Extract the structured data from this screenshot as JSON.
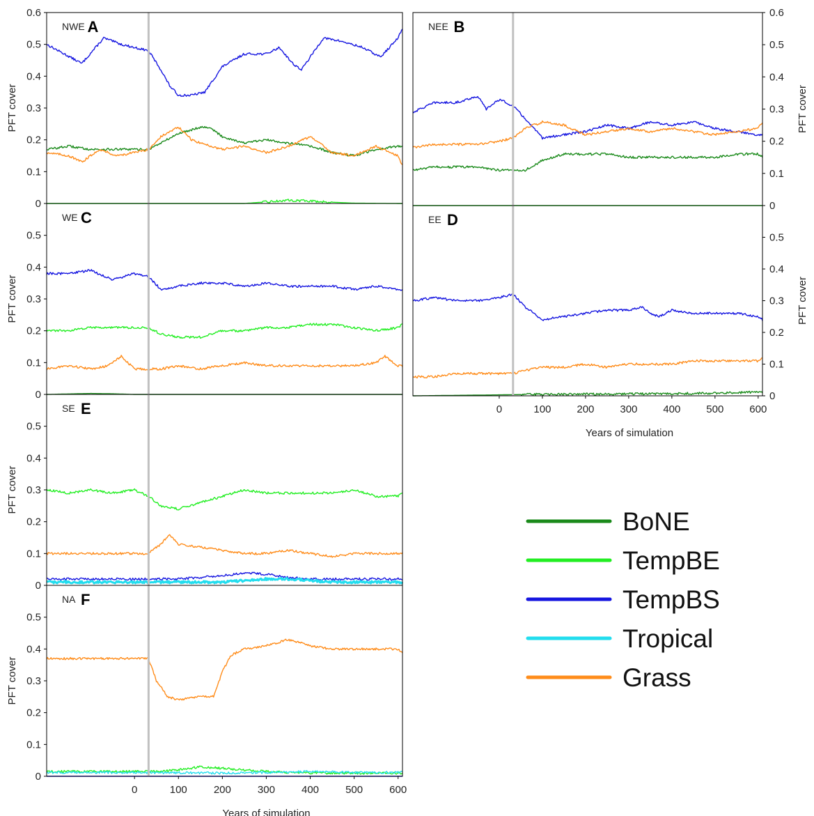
{
  "figure": {
    "xlabel": "Years of simulation",
    "ylabel": "PFT cover",
    "vline_year": 32
  },
  "colors": {
    "BoNE": "#1a8a1a",
    "TempBE": "#22ee22",
    "TempBS": "#1515e0",
    "Tropical": "#22ddee",
    "Grass": "#ff8c1a",
    "divider": "#c0c0c0"
  },
  "legend": [
    {
      "key": "BoNE",
      "label": " BoNE"
    },
    {
      "key": "TempBE",
      "label": "TempBE"
    },
    {
      "key": "TempBS",
      "label": "TempBS"
    },
    {
      "key": "Tropical",
      "label": "Tropical"
    },
    {
      "key": "Grass",
      "label": "Grass"
    }
  ],
  "chart_data": [
    {
      "type": "line",
      "letter": "A",
      "region": "NWE",
      "xlim": [
        -200,
        610
      ],
      "ylim": [
        0,
        0.6
      ],
      "yticks": [
        "0",
        "0.1",
        "0.2",
        "0.3",
        "0.4",
        "0.5",
        "0.6"
      ],
      "xticks": [],
      "show_xlabel": false,
      "show_ylabel": true,
      "right_axis": false,
      "series": [
        {
          "key": "TempBS",
          "x": [
            -200,
            -120,
            -70,
            -30,
            0,
            32,
            60,
            80,
            100,
            130,
            160,
            200,
            250,
            300,
            330,
            360,
            380,
            430,
            470,
            520,
            560,
            600,
            610
          ],
          "y": [
            0.5,
            0.44,
            0.52,
            0.5,
            0.49,
            0.48,
            0.42,
            0.37,
            0.34,
            0.34,
            0.35,
            0.43,
            0.47,
            0.47,
            0.49,
            0.44,
            0.42,
            0.52,
            0.51,
            0.49,
            0.46,
            0.52,
            0.55
          ]
        },
        {
          "key": "BoNE",
          "x": [
            -200,
            -150,
            -100,
            -50,
            0,
            32,
            60,
            100,
            150,
            170,
            200,
            250,
            300,
            350,
            400,
            450,
            500,
            550,
            600,
            610
          ],
          "y": [
            0.17,
            0.18,
            0.17,
            0.17,
            0.17,
            0.17,
            0.19,
            0.22,
            0.24,
            0.24,
            0.21,
            0.19,
            0.2,
            0.19,
            0.18,
            0.16,
            0.15,
            0.17,
            0.18,
            0.18
          ]
        },
        {
          "key": "Grass",
          "x": [
            -200,
            -150,
            -120,
            -80,
            -40,
            0,
            32,
            60,
            100,
            130,
            150,
            200,
            250,
            300,
            350,
            400,
            450,
            500,
            550,
            600,
            610
          ],
          "y": [
            0.16,
            0.15,
            0.13,
            0.17,
            0.15,
            0.16,
            0.17,
            0.21,
            0.24,
            0.2,
            0.19,
            0.17,
            0.18,
            0.16,
            0.18,
            0.21,
            0.16,
            0.15,
            0.18,
            0.15,
            0.12
          ]
        },
        {
          "key": "TempBE",
          "x": [
            -200,
            250,
            300,
            350,
            400,
            450,
            500,
            610
          ],
          "y": [
            0,
            0,
            0.005,
            0.01,
            0.008,
            0.004,
            0.001,
            0
          ]
        }
      ]
    },
    {
      "type": "line",
      "letter": "B",
      "region": "NEE",
      "xlim": [
        -200,
        610
      ],
      "ylim": [
        0,
        0.6
      ],
      "yticks": [
        "0",
        "0.1",
        "0.2",
        "0.3",
        "0.4",
        "0.5",
        "0.6"
      ],
      "xticks": [],
      "show_xlabel": false,
      "show_ylabel": true,
      "right_axis": true,
      "series": [
        {
          "key": "TempBS",
          "x": [
            -200,
            -150,
            -100,
            -50,
            -30,
            0,
            32,
            60,
            100,
            150,
            200,
            250,
            300,
            350,
            400,
            450,
            500,
            550,
            600,
            610
          ],
          "y": [
            0.29,
            0.32,
            0.32,
            0.34,
            0.3,
            0.33,
            0.31,
            0.27,
            0.21,
            0.22,
            0.23,
            0.25,
            0.24,
            0.26,
            0.25,
            0.26,
            0.24,
            0.23,
            0.22,
            0.22
          ]
        },
        {
          "key": "Grass",
          "x": [
            -200,
            -150,
            -100,
            -50,
            0,
            32,
            60,
            100,
            150,
            200,
            250,
            300,
            350,
            400,
            450,
            500,
            550,
            600,
            610
          ],
          "y": [
            0.18,
            0.19,
            0.19,
            0.19,
            0.2,
            0.21,
            0.24,
            0.26,
            0.25,
            0.22,
            0.23,
            0.24,
            0.23,
            0.24,
            0.23,
            0.22,
            0.23,
            0.24,
            0.26
          ]
        },
        {
          "key": "BoNE",
          "x": [
            -200,
            -150,
            -100,
            -50,
            0,
            32,
            60,
            100,
            150,
            200,
            250,
            300,
            350,
            400,
            450,
            500,
            550,
            600,
            610
          ],
          "y": [
            0.11,
            0.12,
            0.12,
            0.12,
            0.11,
            0.11,
            0.11,
            0.14,
            0.16,
            0.16,
            0.16,
            0.15,
            0.15,
            0.15,
            0.15,
            0.15,
            0.16,
            0.16,
            0.15
          ]
        },
        {
          "key": "TempBE",
          "x": [
            -200,
            610
          ],
          "y": [
            0,
            0
          ]
        }
      ]
    },
    {
      "type": "line",
      "letter": "C",
      "region": "WE",
      "xlim": [
        -200,
        610
      ],
      "ylim": [
        0,
        0.6
      ],
      "yticks": [
        "0",
        "0.1",
        "0.2",
        "0.3",
        "0.4",
        "0.5"
      ],
      "xticks": [],
      "show_xlabel": false,
      "show_ylabel": true,
      "right_axis": false,
      "series": [
        {
          "key": "TempBS",
          "x": [
            -200,
            -150,
            -100,
            -50,
            0,
            32,
            60,
            100,
            150,
            200,
            250,
            300,
            350,
            400,
            450,
            500,
            550,
            600,
            610
          ],
          "y": [
            0.38,
            0.38,
            0.39,
            0.36,
            0.38,
            0.37,
            0.33,
            0.34,
            0.35,
            0.35,
            0.34,
            0.35,
            0.34,
            0.34,
            0.34,
            0.33,
            0.34,
            0.33,
            0.33
          ]
        },
        {
          "key": "TempBE",
          "x": [
            -200,
            -150,
            -100,
            -50,
            0,
            32,
            60,
            100,
            150,
            200,
            250,
            300,
            350,
            400,
            450,
            500,
            550,
            600,
            610
          ],
          "y": [
            0.2,
            0.2,
            0.21,
            0.21,
            0.21,
            0.21,
            0.19,
            0.18,
            0.18,
            0.2,
            0.2,
            0.21,
            0.21,
            0.22,
            0.22,
            0.21,
            0.2,
            0.21,
            0.22
          ]
        },
        {
          "key": "Grass",
          "x": [
            -200,
            -150,
            -100,
            -60,
            -30,
            0,
            32,
            60,
            100,
            150,
            200,
            250,
            300,
            350,
            400,
            450,
            500,
            550,
            570,
            600,
            610
          ],
          "y": [
            0.08,
            0.09,
            0.08,
            0.09,
            0.12,
            0.08,
            0.08,
            0.08,
            0.09,
            0.08,
            0.09,
            0.1,
            0.09,
            0.09,
            0.09,
            0.09,
            0.09,
            0.1,
            0.12,
            0.09,
            0.09
          ]
        },
        {
          "key": "BoNE",
          "x": [
            -200,
            -100,
            -50,
            0,
            610
          ],
          "y": [
            0,
            0.003,
            0.002,
            0,
            0
          ]
        }
      ]
    },
    {
      "type": "line",
      "letter": "D",
      "region": "EE",
      "xlim": [
        -200,
        610
      ],
      "ylim": [
        0,
        0.6
      ],
      "yticks": [
        "0",
        "0.1",
        "0.2",
        "0.3",
        "0.4",
        "0.5"
      ],
      "xticks": [
        "0",
        "100",
        "200",
        "300",
        "400",
        "500",
        "600"
      ],
      "xtick_values": [
        0,
        100,
        200,
        300,
        400,
        500,
        600
      ],
      "show_xlabel": true,
      "show_ylabel": true,
      "right_axis": true,
      "series": [
        {
          "key": "TempBS",
          "x": [
            -200,
            -150,
            -100,
            -50,
            0,
            32,
            60,
            100,
            150,
            200,
            250,
            300,
            330,
            350,
            370,
            400,
            450,
            500,
            550,
            600,
            610
          ],
          "y": [
            0.3,
            0.31,
            0.3,
            0.3,
            0.31,
            0.32,
            0.28,
            0.24,
            0.25,
            0.26,
            0.27,
            0.27,
            0.28,
            0.26,
            0.25,
            0.27,
            0.26,
            0.26,
            0.26,
            0.25,
            0.24
          ]
        },
        {
          "key": "Grass",
          "x": [
            -200,
            -150,
            -100,
            -50,
            0,
            32,
            60,
            100,
            150,
            200,
            250,
            300,
            350,
            400,
            450,
            500,
            550,
            600,
            610
          ],
          "y": [
            0.06,
            0.06,
            0.07,
            0.07,
            0.07,
            0.07,
            0.08,
            0.09,
            0.09,
            0.1,
            0.09,
            0.1,
            0.1,
            0.1,
            0.11,
            0.11,
            0.11,
            0.11,
            0.12
          ]
        },
        {
          "key": "BoNE",
          "x": [
            -200,
            0,
            100,
            200,
            300,
            400,
            500,
            550,
            600,
            610
          ],
          "y": [
            0,
            0.003,
            0.005,
            0.005,
            0.006,
            0.007,
            0.008,
            0.01,
            0.012,
            0.012
          ]
        }
      ]
    },
    {
      "type": "line",
      "letter": "E",
      "region": "SE",
      "xlim": [
        -200,
        610
      ],
      "ylim": [
        0,
        0.6
      ],
      "yticks": [
        "0",
        "0.1",
        "0.2",
        "0.3",
        "0.4",
        "0.5"
      ],
      "xticks": [],
      "show_xlabel": false,
      "show_ylabel": true,
      "right_axis": false,
      "series": [
        {
          "key": "TempBE",
          "x": [
            -200,
            -150,
            -100,
            -50,
            0,
            32,
            60,
            100,
            150,
            200,
            250,
            300,
            350,
            400,
            450,
            500,
            550,
            600,
            610
          ],
          "y": [
            0.3,
            0.29,
            0.3,
            0.29,
            0.3,
            0.28,
            0.25,
            0.24,
            0.26,
            0.28,
            0.3,
            0.29,
            0.29,
            0.29,
            0.29,
            0.3,
            0.28,
            0.28,
            0.29
          ]
        },
        {
          "key": "Grass",
          "x": [
            -200,
            -150,
            -100,
            -50,
            0,
            32,
            60,
            80,
            100,
            150,
            200,
            250,
            300,
            350,
            400,
            450,
            500,
            550,
            600,
            610
          ],
          "y": [
            0.1,
            0.1,
            0.1,
            0.1,
            0.1,
            0.1,
            0.13,
            0.16,
            0.13,
            0.12,
            0.11,
            0.1,
            0.1,
            0.11,
            0.1,
            0.09,
            0.1,
            0.1,
            0.1,
            0.1
          ]
        },
        {
          "key": "TempBS",
          "x": [
            -200,
            0,
            50,
            100,
            150,
            200,
            250,
            300,
            350,
            400,
            450,
            500,
            550,
            610
          ],
          "y": [
            0.02,
            0.02,
            0.02,
            0.02,
            0.025,
            0.03,
            0.04,
            0.035,
            0.025,
            0.02,
            0.02,
            0.02,
            0.02,
            0.02
          ]
        },
        {
          "key": "Tropical",
          "x": [
            -200,
            0,
            100,
            200,
            250,
            300,
            350,
            400,
            450,
            500,
            550,
            610
          ],
          "y": [
            0.01,
            0.01,
            0.01,
            0.01,
            0.015,
            0.02,
            0.02,
            0.015,
            0.01,
            0.01,
            0.01,
            0.01
          ]
        }
      ]
    },
    {
      "type": "line",
      "letter": "F",
      "region": "NA",
      "xlim": [
        -200,
        610
      ],
      "ylim": [
        0,
        0.6
      ],
      "yticks": [
        "0",
        "0.1",
        "0.2",
        "0.3",
        "0.4",
        "0.5"
      ],
      "xticks": [
        "0",
        "100",
        "200",
        "300",
        "400",
        "500",
        "600"
      ],
      "xtick_values": [
        0,
        100,
        200,
        300,
        400,
        500,
        600
      ],
      "show_xlabel": true,
      "show_ylabel": true,
      "right_axis": false,
      "series": [
        {
          "key": "Grass",
          "x": [
            -200,
            -150,
            -100,
            -50,
            0,
            32,
            50,
            75,
            100,
            150,
            180,
            200,
            220,
            250,
            300,
            350,
            400,
            450,
            500,
            550,
            600,
            610
          ],
          "y": [
            0.37,
            0.37,
            0.37,
            0.37,
            0.37,
            0.37,
            0.3,
            0.25,
            0.24,
            0.25,
            0.25,
            0.33,
            0.38,
            0.4,
            0.41,
            0.43,
            0.41,
            0.4,
            0.4,
            0.4,
            0.4,
            0.39
          ]
        },
        {
          "key": "TempBE",
          "x": [
            -200,
            0,
            50,
            100,
            150,
            200,
            250,
            300,
            400,
            500,
            610
          ],
          "y": [
            0.015,
            0.015,
            0.015,
            0.02,
            0.03,
            0.025,
            0.02,
            0.015,
            0.01,
            0.01,
            0.01
          ]
        },
        {
          "key": "Tropical",
          "x": [
            -200,
            0,
            200,
            300,
            400,
            500,
            610
          ],
          "y": [
            0.012,
            0.012,
            0.01,
            0.012,
            0.015,
            0.012,
            0.012
          ]
        },
        {
          "key": "TempBS",
          "x": [
            -200,
            610
          ],
          "y": [
            0,
            0
          ]
        }
      ]
    }
  ]
}
